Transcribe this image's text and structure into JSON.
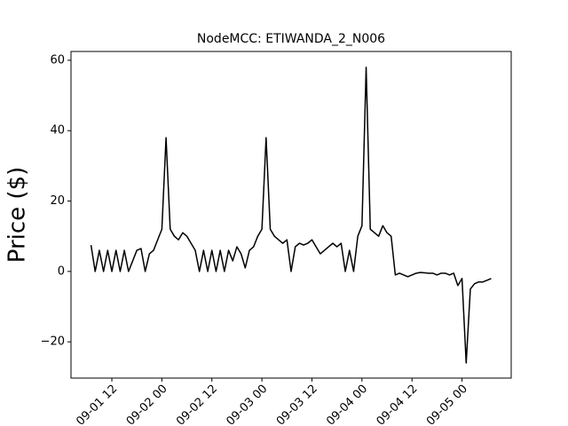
{
  "chart_data": {
    "type": "line",
    "title": "NodeMCC: ETIWANDA_2_N006",
    "ylabel": "Price ($)",
    "x": [
      "09-01 07",
      "09-01 08",
      "09-01 09",
      "09-01 10",
      "09-01 11",
      "09-01 12",
      "09-01 13",
      "09-01 14",
      "09-01 15",
      "09-01 16",
      "09-01 17",
      "09-01 18",
      "09-01 19",
      "09-01 20",
      "09-01 21",
      "09-01 22",
      "09-01 23",
      "09-02 00",
      "09-02 01",
      "09-02 02",
      "09-02 03",
      "09-02 04",
      "09-02 05",
      "09-02 06",
      "09-02 07",
      "09-02 08",
      "09-02 09",
      "09-02 10",
      "09-02 11",
      "09-02 12",
      "09-02 13",
      "09-02 14",
      "09-02 15",
      "09-02 16",
      "09-02 17",
      "09-02 18",
      "09-02 19",
      "09-02 20",
      "09-02 21",
      "09-02 22",
      "09-02 23",
      "09-03 00",
      "09-03 01",
      "09-03 02",
      "09-03 03",
      "09-03 04",
      "09-03 05",
      "09-03 06",
      "09-03 07",
      "09-03 08",
      "09-03 09",
      "09-03 10",
      "09-03 11",
      "09-03 12",
      "09-03 13",
      "09-03 14",
      "09-03 15",
      "09-03 16",
      "09-03 17",
      "09-03 18",
      "09-03 19",
      "09-03 20",
      "09-03 21",
      "09-03 22",
      "09-03 23",
      "09-04 00",
      "09-04 01",
      "09-04 02",
      "09-04 03",
      "09-04 04",
      "09-04 05",
      "09-04 06",
      "09-04 07",
      "09-04 08",
      "09-04 09",
      "09-04 10",
      "09-04 11",
      "09-04 12",
      "09-04 13",
      "09-04 14",
      "09-04 15",
      "09-04 16",
      "09-04 17",
      "09-04 18",
      "09-04 19",
      "09-04 20",
      "09-04 21",
      "09-04 22",
      "09-04 23",
      "09-05 00",
      "09-05 01",
      "09-05 02",
      "09-05 03",
      "09-05 04",
      "09-05 05",
      "09-05 06",
      "09-05 07"
    ],
    "series": [
      {
        "color": "#000000",
        "values": [
          7.5,
          0,
          6,
          0,
          6,
          0,
          6,
          0,
          6,
          0,
          3,
          6,
          6.5,
          0,
          5,
          6,
          9,
          12,
          38,
          12,
          10,
          9,
          11,
          10,
          8,
          6,
          0,
          6,
          0,
          6,
          0,
          6,
          0,
          6,
          3,
          7,
          5,
          1,
          6,
          7,
          10,
          12,
          38,
          12,
          10,
          9,
          8,
          9,
          0,
          7,
          8,
          7.5,
          8,
          9,
          7,
          5,
          6,
          7,
          8,
          7,
          8,
          0,
          6,
          0,
          10,
          13,
          58,
          12,
          11,
          10,
          13,
          11,
          10,
          -1,
          -0.5,
          -1,
          -1.5,
          -1,
          -0.5,
          -0.3,
          -0.4,
          -0.5,
          -0.5,
          -1,
          -0.5,
          -0.5,
          -1,
          -0.5,
          -4,
          -2,
          -26,
          -5,
          -3.5,
          -3,
          -3,
          -2.5,
          -2
        ]
      }
    ],
    "xlim": [
      "09-01 02:12",
      "09-05 11:48"
    ],
    "xticks": [
      "09-01 12",
      "09-02 00",
      "09-02 12",
      "09-03 00",
      "09-03 12",
      "09-04 00",
      "09-04 12",
      "09-05 00"
    ],
    "ylim": [
      -30.3,
      62.5
    ],
    "yticks": [
      {
        "value": -20,
        "label": "−20"
      },
      0,
      20,
      40,
      60
    ]
  }
}
